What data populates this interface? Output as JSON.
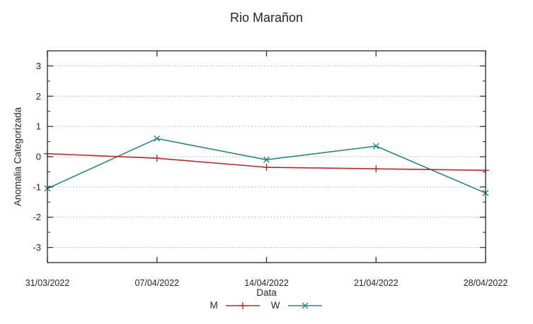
{
  "chart_data": {
    "type": "line",
    "title": "Rio Marañon",
    "xlabel": "Data",
    "ylabel": "Anomalia Categorizada",
    "categories": [
      "31/03/2022",
      "07/04/2022",
      "14/04/2022",
      "21/04/2022",
      "28/04/2022"
    ],
    "series": [
      {
        "name": "M",
        "marker": "plus",
        "color": "#b02c2c",
        "values": [
          0.1,
          -0.05,
          -0.35,
          -0.4,
          -0.45
        ]
      },
      {
        "name": "W",
        "marker": "cross",
        "color": "#2d8484",
        "values": [
          -1.05,
          0.6,
          -0.1,
          0.35,
          -1.2
        ]
      }
    ],
    "yticks": [
      3,
      2,
      1,
      0,
      -1,
      -2,
      -3
    ],
    "ylim": [
      -3.5,
      3.5
    ],
    "minor_tick_step": 0.5,
    "grid": true,
    "legend_position": "bottom-center",
    "colors": {
      "grid": "#b8b8b8",
      "border": "#333333",
      "text": "#262626"
    }
  }
}
